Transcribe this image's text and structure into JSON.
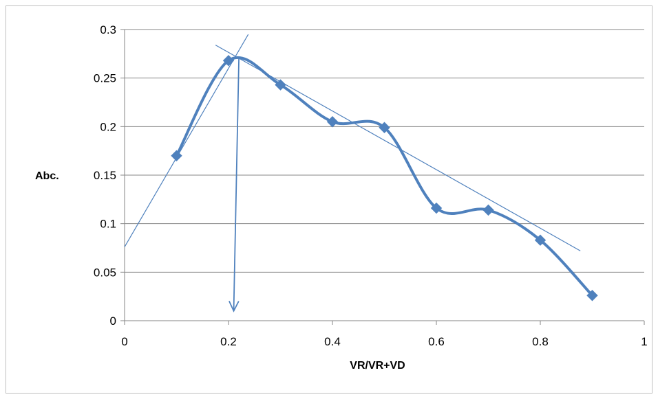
{
  "chart_data": {
    "type": "line",
    "title": "",
    "xlabel": "VR/VR+VD",
    "ylabel": "Abc.",
    "xlim": [
      0,
      1
    ],
    "ylim": [
      0,
      0.3
    ],
    "x_ticks": [
      0,
      0.2,
      0.4,
      0.6,
      0.8,
      1
    ],
    "y_ticks": [
      0,
      0.05,
      0.1,
      0.15,
      0.2,
      0.25,
      0.3
    ],
    "x_tick_labels": [
      "0",
      "0.2",
      "0.4",
      "0.6",
      "0.8",
      "1"
    ],
    "y_tick_labels": [
      "0",
      "0.05",
      "0.1",
      "0.15",
      "0.2",
      "0.25",
      "0.3"
    ],
    "grid": "horizontal",
    "legend": "none",
    "series": [
      {
        "x": [
          0.1,
          0.2,
          0.3,
          0.4,
          0.5,
          0.6,
          0.7,
          0.8,
          0.9
        ],
        "values": [
          0.17,
          0.268,
          0.243,
          0.205,
          0.199,
          0.116,
          0.114,
          0.083,
          0.026
        ],
        "color": "#4f81bd",
        "marker": "diamond",
        "smooth": true
      }
    ],
    "annotations": [
      {
        "type": "line",
        "from": [
          0,
          0.076
        ],
        "to": [
          0.238,
          0.295
        ],
        "color": "#4f81bd"
      },
      {
        "type": "line",
        "from": [
          0.175,
          0.284
        ],
        "to": [
          0.877,
          0.072
        ],
        "color": "#4f81bd"
      },
      {
        "type": "arrow",
        "from": [
          0.22,
          0.271
        ],
        "to": [
          0.21,
          0.01
        ],
        "color": "#4f81bd"
      }
    ]
  }
}
